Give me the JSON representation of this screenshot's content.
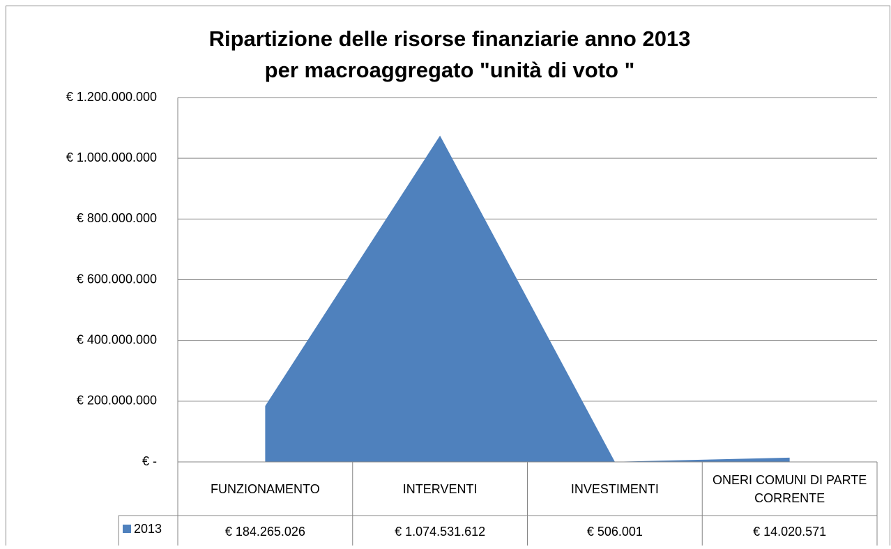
{
  "chart_data": {
    "type": "area",
    "title": [
      "Ripartizione delle risorse finanziarie anno 2013",
      "per macroaggregato \"unità di voto \""
    ],
    "categories": [
      "FUNZIONAMENTO",
      "INTERVENTI",
      "INVESTIMENTI",
      "ONERI COMUNI DI PARTE CORRENTE"
    ],
    "series": [
      {
        "name": "2013",
        "color": "#4f81bd",
        "values": [
          184265026,
          1074531612,
          506001,
          14020571
        ],
        "value_labels": [
          "€ 184.265.026",
          "€ 1.074.531.612",
          "€ 506.001",
          "€ 14.020.571"
        ]
      }
    ],
    "ylim": [
      0,
      1200000000
    ],
    "yticks": [
      {
        "value": 0,
        "label": "€ -"
      },
      {
        "value": 200000000,
        "label": "€ 200.000.000"
      },
      {
        "value": 400000000,
        "label": "€ 400.000.000"
      },
      {
        "value": 600000000,
        "label": "€ 600.000.000"
      },
      {
        "value": 800000000,
        "label": "€ 800.000.000"
      },
      {
        "value": 1000000000,
        "label": "€ 1.000.000.000"
      },
      {
        "value": 1200000000,
        "label": "€ 1.200.000.000"
      }
    ],
    "grid": true,
    "data_table": true
  }
}
